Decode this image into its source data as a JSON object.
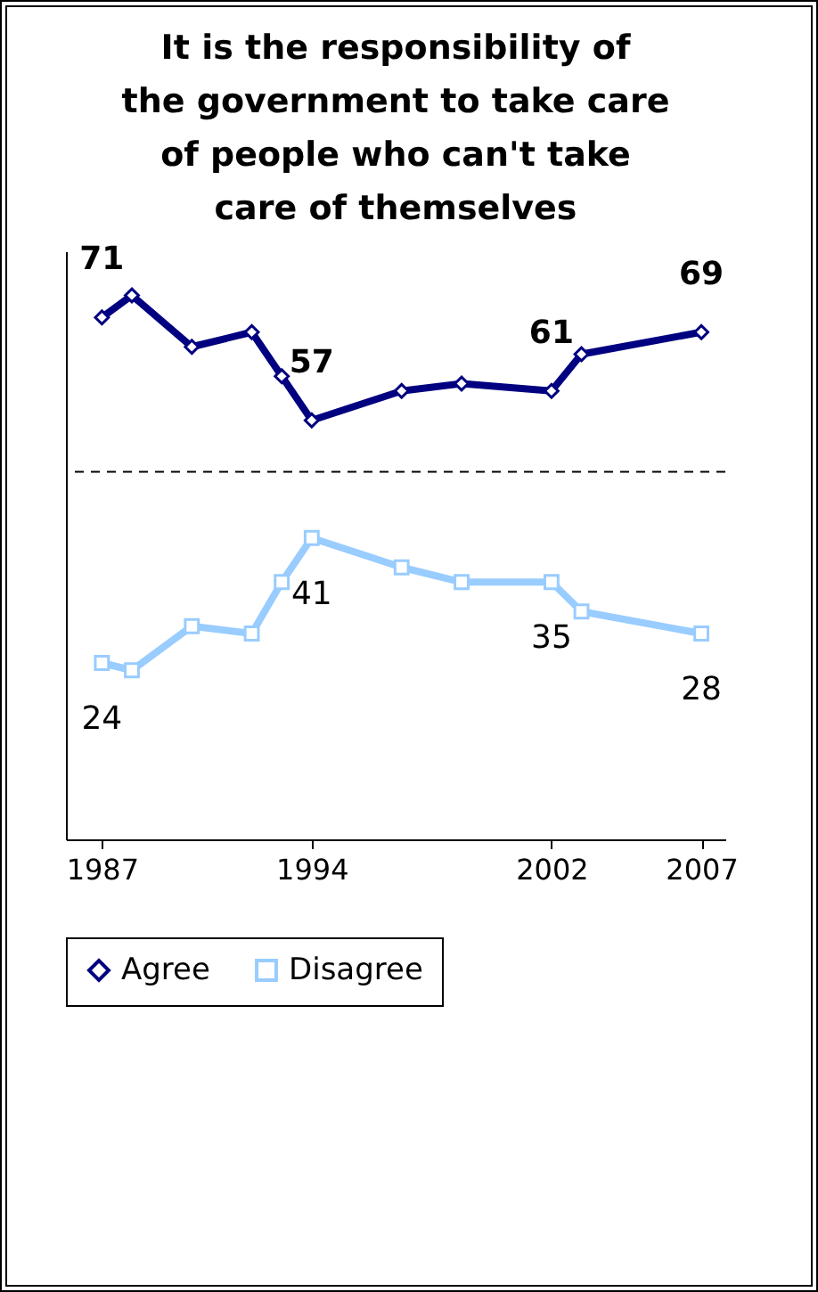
{
  "chart_data": {
    "type": "line",
    "title": "It is the responsibility of the government to take care of people who can't take care of themselves",
    "x": [
      1987,
      1988,
      1990,
      1992,
      1993,
      1994,
      1997,
      1999,
      2002,
      2003,
      2007
    ],
    "series": [
      {
        "name": "Agree",
        "color": "#000080",
        "marker": "diamond",
        "values": [
          71,
          74,
          67,
          69,
          63,
          57,
          61,
          62,
          61,
          66,
          69
        ],
        "value_labels": [
          "71",
          null,
          null,
          null,
          null,
          "57",
          null,
          null,
          "61",
          null,
          "69"
        ]
      },
      {
        "name": "Disagree",
        "color": "#99ccff",
        "marker": "square",
        "values": [
          24,
          23,
          29,
          28,
          35,
          41,
          37,
          35,
          35,
          31,
          28
        ],
        "value_labels": [
          "24",
          null,
          null,
          null,
          null,
          "41",
          null,
          null,
          "35",
          null,
          "28"
        ]
      }
    ],
    "xlim": [
      1985.8,
      2007.8
    ],
    "xticks": [
      1987,
      1994,
      2002,
      2007
    ],
    "ylim": [
      0,
      80
    ],
    "ref_lines": [
      {
        "axis": "y",
        "value": 50,
        "line_style": "dashed",
        "color": "#000000"
      }
    ],
    "tick_labels": "x",
    "grid": false,
    "legend": "bottom",
    "line_style": "solid"
  }
}
